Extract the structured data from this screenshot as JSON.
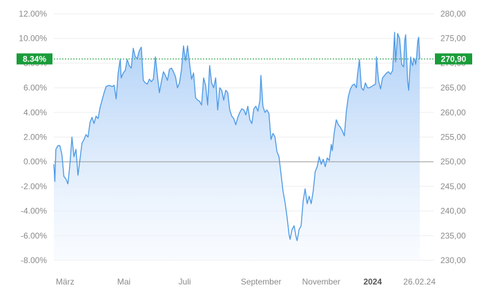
{
  "chart_data": {
    "type": "area",
    "left_axis": {
      "ticks": [
        "12.00%",
        "10.00%",
        "8.00%",
        "6.00%",
        "4.00%",
        "2.00%",
        "0.00%",
        "-2.00%",
        "-4.00%",
        "-6.00%",
        "-8.00%"
      ],
      "values": [
        12,
        10,
        8,
        6,
        4,
        2,
        0,
        -2,
        -4,
        -6,
        -8
      ],
      "range": [
        -8,
        12
      ]
    },
    "right_axis": {
      "ticks": [
        "280,00",
        "275,00",
        "270,00",
        "265,00",
        "260,00",
        "255,00",
        "250,00",
        "245,00",
        "240,00",
        "235,00",
        "230,00"
      ],
      "values": [
        280,
        275,
        270,
        265,
        260,
        255,
        250,
        245,
        240,
        235,
        230
      ],
      "range": [
        230,
        280
      ]
    },
    "x_axis": {
      "labels": [
        {
          "text": "März",
          "date": "2023-03-01",
          "bold": false
        },
        {
          "text": "Mai",
          "date": "2023-05-01",
          "bold": false
        },
        {
          "text": "Juli",
          "date": "2023-07-01",
          "bold": false
        },
        {
          "text": "September",
          "date": "2023-09-01",
          "bold": false
        },
        {
          "text": "November",
          "date": "2023-11-01",
          "bold": false
        },
        {
          "text": "2024",
          "date": "2024-01-01",
          "bold": true
        },
        {
          "text": "26.02.24",
          "date": "2024-02-26",
          "bold": false
        }
      ],
      "range": [
        "2023-02-27",
        "2024-02-26"
      ]
    },
    "reference_line": {
      "value": 0,
      "label": "0.00%"
    },
    "current_value": {
      "percent_label": "8.34%",
      "price_label": "270,90",
      "percent": 8.34,
      "price": 270.9
    },
    "grid": true,
    "series": [
      {
        "color": "#4f9be6",
        "points": [
          [
            "2023-02-27",
            -0.2
          ],
          [
            "2023-02-28",
            -1.6
          ],
          [
            "2023-03-01",
            1.0
          ],
          [
            "2023-03-03",
            1.3
          ],
          [
            "2023-03-05",
            1.3
          ],
          [
            "2023-03-07",
            0.6
          ],
          [
            "2023-03-09",
            -1.2
          ],
          [
            "2023-03-11",
            -1.4
          ],
          [
            "2023-03-13",
            -1.8
          ],
          [
            "2023-03-15",
            -0.2
          ],
          [
            "2023-03-17",
            2.0
          ],
          [
            "2023-03-19",
            0.4
          ],
          [
            "2023-03-21",
            1.0
          ],
          [
            "2023-03-23",
            -1.1
          ],
          [
            "2023-03-25",
            0.2
          ],
          [
            "2023-03-27",
            1.5
          ],
          [
            "2023-03-29",
            1.8
          ],
          [
            "2023-03-31",
            2.2
          ],
          [
            "2023-04-02",
            2.0
          ],
          [
            "2023-04-04",
            3.2
          ],
          [
            "2023-04-06",
            3.6
          ],
          [
            "2023-04-08",
            3.1
          ],
          [
            "2023-04-10",
            3.7
          ],
          [
            "2023-04-12",
            3.5
          ],
          [
            "2023-04-14",
            4.4
          ],
          [
            "2023-04-16",
            5.0
          ],
          [
            "2023-04-18",
            5.6
          ],
          [
            "2023-04-20",
            6.1
          ],
          [
            "2023-04-23",
            6.2
          ],
          [
            "2023-04-26",
            6.1
          ],
          [
            "2023-04-28",
            6.2
          ],
          [
            "2023-04-30",
            5.1
          ],
          [
            "2023-05-02",
            7.2
          ],
          [
            "2023-05-04",
            8.3
          ],
          [
            "2023-05-05",
            6.8
          ],
          [
            "2023-05-07",
            7.2
          ],
          [
            "2023-05-09",
            7.4
          ],
          [
            "2023-05-11",
            8.3
          ],
          [
            "2023-05-13",
            7.8
          ],
          [
            "2023-05-15",
            7.6
          ],
          [
            "2023-05-17",
            9.2
          ],
          [
            "2023-05-19",
            8.5
          ],
          [
            "2023-05-21",
            8.4
          ],
          [
            "2023-05-23",
            9.0
          ],
          [
            "2023-05-25",
            9.3
          ],
          [
            "2023-05-27",
            6.6
          ],
          [
            "2023-05-29",
            6.4
          ],
          [
            "2023-05-31",
            6.3
          ],
          [
            "2023-06-02",
            6.7
          ],
          [
            "2023-06-04",
            6.5
          ],
          [
            "2023-06-06",
            6.7
          ],
          [
            "2023-06-08",
            8.5
          ],
          [
            "2023-06-10",
            7.0
          ],
          [
            "2023-06-12",
            5.6
          ],
          [
            "2023-06-14",
            6.5
          ],
          [
            "2023-06-16",
            7.3
          ],
          [
            "2023-06-18",
            7.0
          ],
          [
            "2023-06-20",
            6.6
          ],
          [
            "2023-06-22",
            7.5
          ],
          [
            "2023-06-24",
            7.6
          ],
          [
            "2023-06-26",
            7.3
          ],
          [
            "2023-06-28",
            6.9
          ],
          [
            "2023-06-30",
            6.0
          ],
          [
            "2023-07-02",
            6.4
          ],
          [
            "2023-07-04",
            7.5
          ],
          [
            "2023-07-06",
            9.4
          ],
          [
            "2023-07-08",
            8.2
          ],
          [
            "2023-07-10",
            9.4
          ],
          [
            "2023-07-12",
            8.0
          ],
          [
            "2023-07-14",
            6.7
          ],
          [
            "2023-07-16",
            7.2
          ],
          [
            "2023-07-18",
            5.2
          ],
          [
            "2023-07-20",
            5.0
          ],
          [
            "2023-07-22",
            4.9
          ],
          [
            "2023-07-24",
            4.6
          ],
          [
            "2023-07-26",
            6.8
          ],
          [
            "2023-07-28",
            6.2
          ],
          [
            "2023-07-30",
            4.6
          ],
          [
            "2023-08-01",
            7.8
          ],
          [
            "2023-08-03",
            6.4
          ],
          [
            "2023-08-05",
            6.0
          ],
          [
            "2023-08-07",
            6.8
          ],
          [
            "2023-08-09",
            4.2
          ],
          [
            "2023-08-11",
            6.0
          ],
          [
            "2023-08-13",
            5.8
          ],
          [
            "2023-08-15",
            5.0
          ],
          [
            "2023-08-17",
            5.8
          ],
          [
            "2023-08-19",
            5.6
          ],
          [
            "2023-08-21",
            4.2
          ],
          [
            "2023-08-23",
            3.7
          ],
          [
            "2023-08-25",
            3.5
          ],
          [
            "2023-08-27",
            3.0
          ],
          [
            "2023-08-29",
            3.6
          ],
          [
            "2023-08-31",
            4.0
          ],
          [
            "2023-09-02",
            4.3
          ],
          [
            "2023-09-04",
            4.2
          ],
          [
            "2023-09-06",
            3.8
          ],
          [
            "2023-09-08",
            4.5
          ],
          [
            "2023-09-10",
            3.4
          ],
          [
            "2023-09-12",
            3.1
          ],
          [
            "2023-09-14",
            4.3
          ],
          [
            "2023-09-16",
            4.5
          ],
          [
            "2023-09-18",
            4.1
          ],
          [
            "2023-09-20",
            5.0
          ],
          [
            "2023-09-21",
            7.0
          ],
          [
            "2023-09-23",
            4.5
          ],
          [
            "2023-09-25",
            4.0
          ],
          [
            "2023-09-27",
            4.2
          ],
          [
            "2023-09-29",
            3.9
          ],
          [
            "2023-10-01",
            1.8
          ],
          [
            "2023-10-03",
            2.3
          ],
          [
            "2023-10-05",
            2.0
          ],
          [
            "2023-10-07",
            0.8
          ],
          [
            "2023-10-09",
            0.4
          ],
          [
            "2023-10-11",
            -1.0
          ],
          [
            "2023-10-13",
            -2.4
          ],
          [
            "2023-10-15",
            -3.3
          ],
          [
            "2023-10-17",
            -4.5
          ],
          [
            "2023-10-19",
            -5.9
          ],
          [
            "2023-10-20",
            -6.3
          ],
          [
            "2023-10-22",
            -5.5
          ],
          [
            "2023-10-24",
            -5.2
          ],
          [
            "2023-10-26",
            -6.1
          ],
          [
            "2023-10-27",
            -6.4
          ],
          [
            "2023-10-29",
            -5.5
          ],
          [
            "2023-10-31",
            -5.2
          ],
          [
            "2023-11-02",
            -3.2
          ],
          [
            "2023-11-04",
            -2.2
          ],
          [
            "2023-11-06",
            -3.4
          ],
          [
            "2023-11-08",
            -2.8
          ],
          [
            "2023-11-10",
            -3.4
          ],
          [
            "2023-11-12",
            -2.4
          ],
          [
            "2023-11-14",
            -0.8
          ],
          [
            "2023-11-16",
            -0.4
          ],
          [
            "2023-11-18",
            0.4
          ],
          [
            "2023-11-20",
            -0.2
          ],
          [
            "2023-11-22",
            0.2
          ],
          [
            "2023-11-24",
            -0.4
          ],
          [
            "2023-11-26",
            0.3
          ],
          [
            "2023-11-28",
            0.1
          ],
          [
            "2023-11-30",
            1.4
          ],
          [
            "2023-12-01",
            0.9
          ],
          [
            "2023-12-03",
            2.4
          ],
          [
            "2023-12-05",
            3.4
          ],
          [
            "2023-12-07",
            3.0
          ],
          [
            "2023-12-09",
            2.8
          ],
          [
            "2023-12-11",
            2.5
          ],
          [
            "2023-12-13",
            2.1
          ],
          [
            "2023-12-15",
            4.1
          ],
          [
            "2023-12-17",
            5.3
          ],
          [
            "2023-12-19",
            5.9
          ],
          [
            "2023-12-21",
            6.2
          ],
          [
            "2023-12-23",
            6.3
          ],
          [
            "2023-12-25",
            6.0
          ],
          [
            "2023-12-26",
            7.0
          ],
          [
            "2023-12-28",
            8.3
          ],
          [
            "2023-12-30",
            6.0
          ],
          [
            "2024-01-01",
            5.8
          ],
          [
            "2024-01-03",
            6.4
          ],
          [
            "2024-01-05",
            6.0
          ],
          [
            "2024-01-07",
            6.0
          ],
          [
            "2024-01-09",
            6.1
          ],
          [
            "2024-01-11",
            6.2
          ],
          [
            "2024-01-13",
            6.3
          ],
          [
            "2024-01-14",
            8.5
          ],
          [
            "2024-01-16",
            6.6
          ],
          [
            "2024-01-18",
            5.9
          ],
          [
            "2024-01-20",
            6.8
          ],
          [
            "2024-01-22",
            7.0
          ],
          [
            "2024-01-24",
            7.2
          ],
          [
            "2024-01-26",
            7.3
          ],
          [
            "2024-01-28",
            7.1
          ],
          [
            "2024-01-30",
            7.4
          ],
          [
            "2024-02-01",
            10.5
          ],
          [
            "2024-02-02",
            8.1
          ],
          [
            "2024-02-04",
            10.4
          ],
          [
            "2024-02-06",
            10.0
          ],
          [
            "2024-02-08",
            7.9
          ],
          [
            "2024-02-10",
            7.7
          ],
          [
            "2024-02-11",
            9.8
          ],
          [
            "2024-02-12",
            10.3
          ],
          [
            "2024-02-14",
            6.5
          ],
          [
            "2024-02-15",
            5.8
          ],
          [
            "2024-02-17",
            8.5
          ],
          [
            "2024-02-18",
            8.0
          ],
          [
            "2024-02-19",
            7.8
          ],
          [
            "2024-02-20",
            8.4
          ],
          [
            "2024-02-21",
            8.3
          ],
          [
            "2024-02-22",
            7.9
          ],
          [
            "2024-02-23",
            8.6
          ],
          [
            "2024-02-24",
            9.8
          ],
          [
            "2024-02-25",
            10.1
          ],
          [
            "2024-02-26",
            8.34
          ]
        ]
      }
    ]
  }
}
